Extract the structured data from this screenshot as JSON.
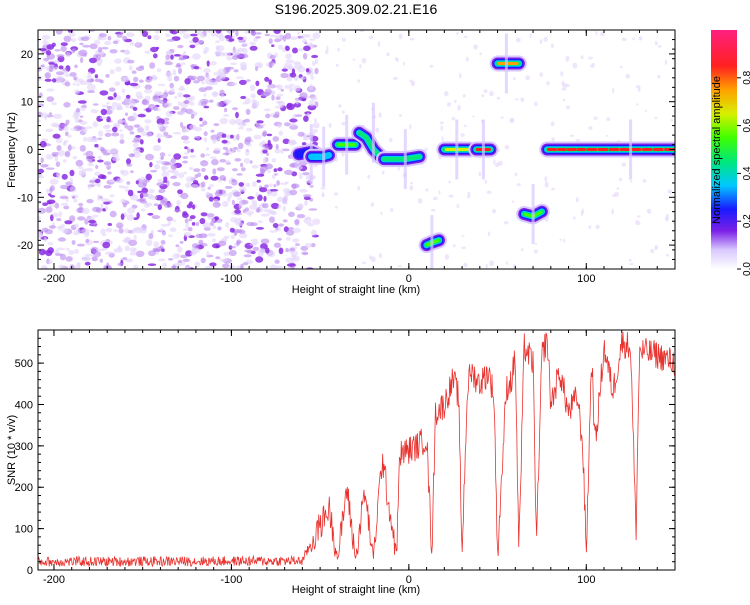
{
  "title": "S196.2025.309.02.21.E16",
  "chart_data": [
    {
      "type": "heatmap",
      "xlabel": "Height of straight line (km)",
      "ylabel": "Frequency (Hz)",
      "xlim": [
        -209,
        150
      ],
      "ylim": [
        -25,
        25
      ],
      "xticks": [
        -200,
        -100,
        0,
        100
      ],
      "xtick_labels": [
        "-200",
        "-100",
        "0",
        "100"
      ],
      "yticks": [
        -20,
        -10,
        0,
        10,
        20
      ],
      "ytick_labels": [
        "-20",
        "-10",
        "0",
        "10",
        "20"
      ],
      "colorbar": {
        "label": "Normalized spectral amplitude",
        "range": [
          0,
          1
        ],
        "ticks": [
          0.0,
          0.2,
          0.4,
          0.6,
          0.8
        ],
        "tick_labels": [
          "0.0",
          "0.2",
          "0.4",
          "0.6",
          "0.8"
        ]
      },
      "noise_region": {
        "x_from": -209,
        "x_to": -52,
        "level": 0.12
      },
      "tracks": [
        {
          "x": [
            -62,
            -55,
            -52
          ],
          "f": [
            -1,
            -0.5,
            -1
          ],
          "amp": 0.3
        },
        {
          "x": [
            -55,
            -48,
            -45
          ],
          "f": [
            -1.5,
            -1.5,
            -1.2
          ],
          "amp": 0.4
        },
        {
          "x": [
            -40,
            -35,
            -30
          ],
          "f": [
            1,
            1,
            1
          ],
          "amp": 0.55
        },
        {
          "x": [
            -28,
            -24,
            -20,
            -16
          ],
          "f": [
            3.5,
            2.5,
            0,
            -1.5
          ],
          "amp": 0.45
        },
        {
          "x": [
            -14,
            -8,
            -2,
            6
          ],
          "f": [
            -2,
            -2,
            -2,
            -1.5
          ],
          "amp": 0.45
        },
        {
          "x": [
            10,
            13,
            17
          ],
          "f": [
            -20,
            -19.5,
            -19
          ],
          "amp": 0.55
        },
        {
          "x": [
            20,
            27,
            34
          ],
          "f": [
            0,
            0,
            0
          ],
          "amp": 0.65
        },
        {
          "x": [
            38,
            42,
            46
          ],
          "f": [
            0,
            0,
            0
          ],
          "amp": 0.95
        },
        {
          "x": [
            50,
            55,
            62
          ],
          "f": [
            18,
            18,
            18
          ],
          "amp": 0.8
        },
        {
          "x": [
            65,
            70,
            75
          ],
          "f": [
            -13.5,
            -14,
            -13
          ],
          "amp": 0.55
        },
        {
          "x": [
            78,
            100,
            125,
            150
          ],
          "f": [
            0,
            0,
            0,
            0
          ],
          "amp": 0.9
        }
      ]
    },
    {
      "type": "line",
      "xlabel": "Height of straight line (km)",
      "ylabel": "SNR (10 * v/v)",
      "xlim": [
        -209,
        150
      ],
      "ylim": [
        0,
        580
      ],
      "xticks": [
        -200,
        -100,
        0,
        100
      ],
      "xtick_labels": [
        "-200",
        "-100",
        "0",
        "100"
      ],
      "yticks": [
        0,
        100,
        200,
        300,
        400,
        500
      ],
      "ytick_labels": [
        "0",
        "100",
        "200",
        "300",
        "400",
        "500"
      ],
      "series": [
        {
          "name": "SNR",
          "color": "#e8322e",
          "x": [
            -209,
            -60,
            -45,
            -40,
            -35,
            -30,
            -25,
            -20,
            -15,
            -10,
            -7,
            -5,
            0,
            5,
            10,
            13,
            15,
            20,
            25,
            28,
            30,
            33,
            35,
            40,
            45,
            48,
            50,
            55,
            58,
            60,
            62,
            65,
            70,
            72,
            75,
            78,
            80,
            85,
            90,
            95,
            98,
            100,
            103,
            105,
            110,
            115,
            120,
            125,
            128,
            130,
            140,
            150
          ],
          "y": [
            20,
            22,
            150,
            25,
            200,
            25,
            190,
            30,
            270,
            120,
            40,
            280,
            290,
            300,
            320,
            40,
            380,
            400,
            460,
            420,
            40,
            440,
            480,
            450,
            480,
            420,
            40,
            440,
            460,
            520,
            40,
            540,
            500,
            60,
            520,
            560,
            400,
            480,
            380,
            420,
            300,
            40,
            520,
            300,
            540,
            430,
            550,
            540,
            90,
            530,
            520,
            500
          ]
        }
      ]
    }
  ]
}
